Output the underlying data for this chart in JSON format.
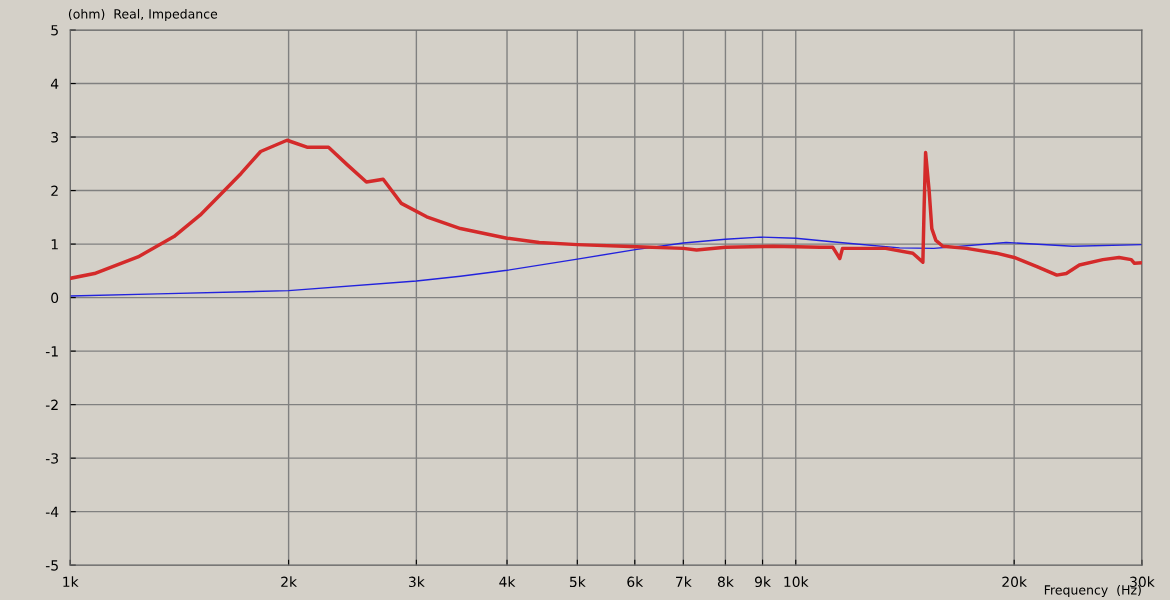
{
  "chart_data": {
    "type": "line",
    "title": "(ohm)  Real, Impedance",
    "xlabel": "Frequency  (Hz)",
    "log": "x",
    "xlim": [
      1000,
      30000
    ],
    "ylim": [
      -5,
      5
    ],
    "xticks": [
      {
        "value": 1000,
        "label": "1k"
      },
      {
        "value": 2000,
        "label": "2k"
      },
      {
        "value": 3000,
        "label": "3k"
      },
      {
        "value": 4000,
        "label": "4k"
      },
      {
        "value": 5000,
        "label": "5k"
      },
      {
        "value": 6000,
        "label": "6k"
      },
      {
        "value": 7000,
        "label": "7k"
      },
      {
        "value": 8000,
        "label": "8k"
      },
      {
        "value": 9000,
        "label": "9k"
      },
      {
        "value": 10000,
        "label": "10k"
      },
      {
        "value": 20000,
        "label": "20k"
      },
      {
        "value": 30000,
        "label": "30k"
      }
    ],
    "yticks": [
      -5,
      -4,
      -3,
      -2,
      -1,
      0,
      1,
      2,
      3,
      4,
      5
    ],
    "grid": true,
    "marker": "none",
    "line_style": "solid",
    "series": [
      {
        "color": "#d42a2a",
        "x": [
          1000,
          1080,
          1240,
          1390,
          1510,
          1610,
          1720,
          1830,
          1990,
          2120,
          2270,
          2410,
          2560,
          2700,
          2860,
          3100,
          3450,
          4000,
          4430,
          5000,
          6040,
          7000,
          7300,
          8000,
          9300,
          10800,
          11250,
          11500,
          11600,
          13300,
          14500,
          14970,
          15030,
          15100,
          15270,
          15400,
          15600,
          15950,
          17200,
          18900,
          20000,
          21500,
          22900,
          23600,
          24600,
          26500,
          27900,
          29000,
          29300,
          30000
        ],
        "values": [
          0.36,
          0.45,
          0.76,
          1.14,
          1.54,
          1.92,
          2.32,
          2.73,
          2.94,
          2.81,
          2.81,
          2.48,
          2.16,
          2.21,
          1.76,
          1.51,
          1.29,
          1.11,
          1.03,
          0.99,
          0.95,
          0.92,
          0.89,
          0.94,
          0.96,
          0.94,
          0.94,
          0.73,
          0.92,
          0.92,
          0.83,
          0.66,
          1.7,
          2.71,
          2.0,
          1.29,
          1.07,
          0.96,
          0.92,
          0.83,
          0.75,
          0.58,
          0.42,
          0.45,
          0.61,
          0.71,
          0.75,
          0.71,
          0.64,
          0.65
        ]
      },
      {
        "color": "#2222dd",
        "x": [
          1000,
          1320,
          2000,
          3000,
          3450,
          4000,
          5000,
          6040,
          7000,
          8000,
          8930,
          10000,
          11500,
          13900,
          15500,
          19500,
          24100,
          30000
        ],
        "values": [
          0.03,
          0.07,
          0.13,
          0.31,
          0.4,
          0.51,
          0.72,
          0.9,
          1.02,
          1.09,
          1.13,
          1.11,
          1.03,
          0.93,
          0.92,
          1.03,
          0.96,
          0.99
        ]
      }
    ]
  }
}
